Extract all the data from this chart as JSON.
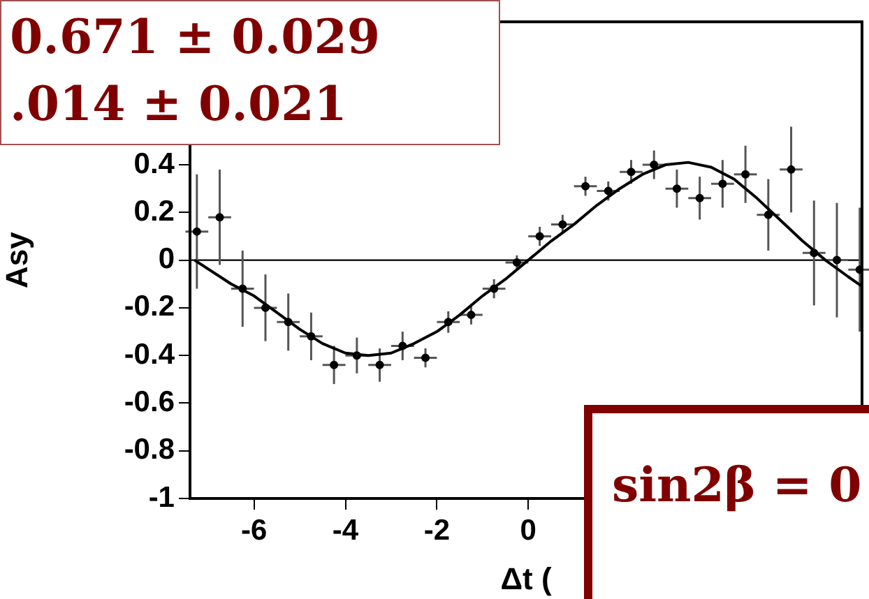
{
  "chart_data": {
    "type": "scatter",
    "xlabel": "Δt (",
    "ylabel": "Asy",
    "xlim": [
      -7.4,
      7.3
    ],
    "ylim": [
      -1,
      1
    ],
    "xticks": [
      -6,
      -4,
      -2,
      0
    ],
    "yticks": [
      -1,
      -0.8,
      -0.6,
      -0.4,
      -0.2,
      0,
      0.2,
      0.4
    ],
    "grid": false,
    "legend": false,
    "ref_lines": [
      {
        "axis": "y",
        "value": 0,
        "color": "#000000"
      }
    ],
    "annotations": [
      "0.671 ± 0.029",
      ".014 ± 0.021",
      "sin2β = 0"
    ],
    "series": [
      {
        "color": "#000000",
        "marker": "circle",
        "x": [
          -7.25,
          -6.75,
          -6.25,
          -5.75,
          -5.25,
          -4.75,
          -4.25,
          -3.75,
          -3.25,
          -2.75,
          -2.25,
          -1.75,
          -1.25,
          -0.75,
          -0.25,
          0.25,
          0.75,
          1.25,
          1.75,
          2.25,
          2.75,
          3.25,
          3.75,
          4.25,
          4.75,
          5.25,
          5.75,
          6.25,
          6.75,
          7.25
        ],
        "values": [
          0.12,
          0.18,
          -0.12,
          -0.2,
          -0.26,
          -0.32,
          -0.44,
          -0.4,
          -0.44,
          -0.36,
          -0.41,
          -0.26,
          -0.23,
          -0.12,
          -0.01,
          0.1,
          0.15,
          0.31,
          0.29,
          0.37,
          0.4,
          0.3,
          0.26,
          0.32,
          0.36,
          0.19,
          0.38,
          0.03,
          0,
          -0.04
        ],
        "errors": [
          0.24,
          0.2,
          0.16,
          0.14,
          0.12,
          0.1,
          0.08,
          0.075,
          0.07,
          0.06,
          0.04,
          0.045,
          0.04,
          0.04,
          0.03,
          0.04,
          0.04,
          0.04,
          0.04,
          0.05,
          0.06,
          0.08,
          0.09,
          0.1,
          0.12,
          0.15,
          0.18,
          0.22,
          0.24,
          0.26
        ],
        "xerrors": [
          0.25,
          0.25,
          0.25,
          0.25,
          0.25,
          0.25,
          0.25,
          0.25,
          0.25,
          0.25,
          0.25,
          0.25,
          0.25,
          0.25,
          0.25,
          0.25,
          0.25,
          0.25,
          0.25,
          0.25,
          0.25,
          0.25,
          0.25,
          0.25,
          0.25,
          0.25,
          0.25,
          0.25,
          0.25,
          0.25
        ]
      },
      {
        "type": "line",
        "color": "#000000",
        "marker": "none",
        "line_style": "solid",
        "x": [
          -7.3,
          -6.5,
          -6,
          -5.5,
          -5,
          -4.5,
          -4,
          -3.5,
          -3,
          -2.5,
          -2,
          -1.5,
          -1,
          -0.5,
          0,
          0.5,
          1,
          1.5,
          2,
          2.5,
          3,
          3.5,
          4,
          4.5,
          5,
          5.5,
          6,
          6.5,
          7,
          7.3
        ],
        "values": [
          0,
          -0.1,
          -0.15,
          -0.22,
          -0.29,
          -0.35,
          -0.39,
          -0.4,
          -0.39,
          -0.35,
          -0.3,
          -0.23,
          -0.15,
          -0.08,
          0,
          0.08,
          0.15,
          0.23,
          0.3,
          0.36,
          0.4,
          0.41,
          0.39,
          0.34,
          0.26,
          0.17,
          0.08,
          0,
          -0.07,
          -0.11
        ]
      }
    ]
  }
}
